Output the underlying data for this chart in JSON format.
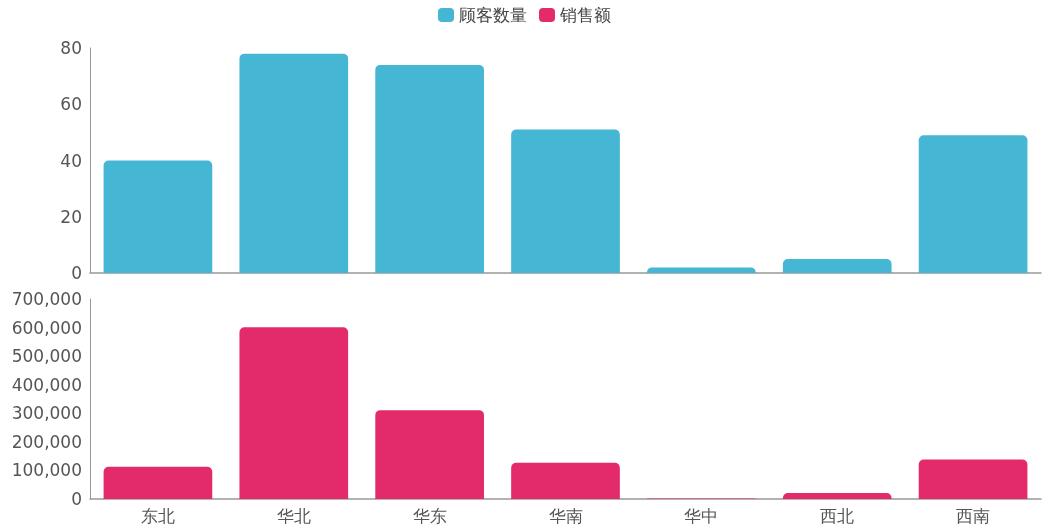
{
  "chart_data": [
    {
      "type": "bar",
      "categories": [
        null,
        null,
        null,
        null,
        null,
        null,
        null
      ],
      "series": [
        {
          "name": "顾客数量",
          "color": "#45b6d3",
          "values": [
            40,
            78,
            74,
            51,
            2,
            5,
            49
          ]
        }
      ],
      "ylim": [
        0,
        80
      ],
      "yticks": [
        0,
        20,
        40,
        60,
        80
      ],
      "legend": "top",
      "tick_labels": "y"
    },
    {
      "type": "bar",
      "categories": [
        "东北",
        "华北",
        "华东",
        "华南",
        "华中",
        "西北",
        "西南"
      ],
      "series": [
        {
          "name": "销售额",
          "color": "#e32b6c",
          "values": [
            113000,
            601000,
            311000,
            127000,
            2000,
            21000,
            138000
          ]
        }
      ],
      "ylim": [
        0,
        700000
      ],
      "yticks": [
        0,
        {
          "value": 100000,
          "label": "100,000"
        },
        {
          "value": 200000,
          "label": "200,000"
        },
        {
          "value": 300000,
          "label": "300,000"
        },
        {
          "value": 400000,
          "label": "400,000"
        },
        {
          "value": 500000,
          "label": "500,000"
        },
        {
          "value": 600000,
          "label": "600,000"
        },
        {
          "value": 700000,
          "label": "700,000"
        }
      ],
      "legend": "top"
    }
  ]
}
